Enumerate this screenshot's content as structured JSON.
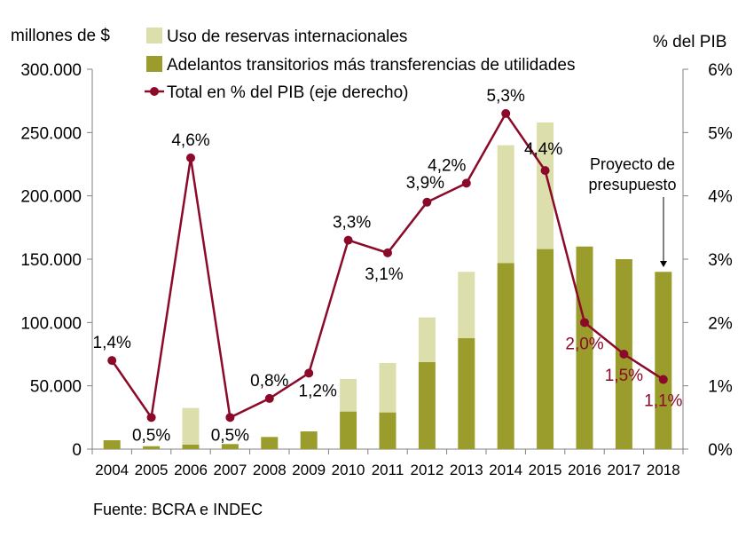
{
  "chart_data": {
    "type": "bar+line",
    "left_axis_title": "millones de $",
    "right_axis_title": "% del PIB",
    "categories": [
      "2004",
      "2005",
      "2006",
      "2007",
      "2008",
      "2009",
      "2010",
      "2011",
      "2012",
      "2013",
      "2014",
      "2015",
      "2016",
      "2017",
      "2018"
    ],
    "ylim": [
      0,
      300000
    ],
    "y_ticks": [
      "0",
      "50.000",
      "100.000",
      "150.000",
      "200.000",
      "250.000",
      "300.000"
    ],
    "y2lim": [
      0,
      6
    ],
    "y2_ticks": [
      "0%",
      "1%",
      "2%",
      "3%",
      "4%",
      "5%",
      "6%"
    ],
    "series": [
      {
        "name": "Adelantos transitorios más transferencias de utilidades",
        "type": "stacked-bar",
        "color": "#9a9c2b",
        "values": [
          7000,
          2300,
          3500,
          4000,
          9600,
          14000,
          29700,
          29000,
          68700,
          87600,
          147000,
          158000,
          160000,
          150000,
          140000
        ]
      },
      {
        "name": "Uso de reservas internacionales",
        "type": "stacked-bar",
        "color": "#dcdfab",
        "values": [
          0,
          0,
          29000,
          0,
          0,
          0,
          25700,
          39000,
          35300,
          52400,
          93000,
          100000,
          0,
          0,
          0
        ]
      },
      {
        "name": "Total en % del PIB (eje derecho)",
        "type": "line",
        "axis": "right",
        "color": "#8b0a2a",
        "values": [
          1.4,
          0.5,
          4.6,
          0.5,
          0.8,
          1.2,
          3.3,
          3.1,
          3.9,
          4.2,
          5.3,
          4.4,
          2.0,
          1.5,
          1.1
        ],
        "labels": [
          "1,4%",
          "0,5%",
          "4,6%",
          "0,5%",
          "0,8%",
          "1,2%",
          "3,3%",
          "3,1%",
          "3,9%",
          "4,2%",
          "5,3%",
          "4,4%",
          "2,0%",
          "1,5%",
          "1,1%"
        ]
      }
    ],
    "annotation": {
      "text_line1": "Proyecto de",
      "text_line2": "presupuesto"
    },
    "legend_placement": "top",
    "grid": false,
    "source": "Fuente: BCRA e INDEC"
  }
}
